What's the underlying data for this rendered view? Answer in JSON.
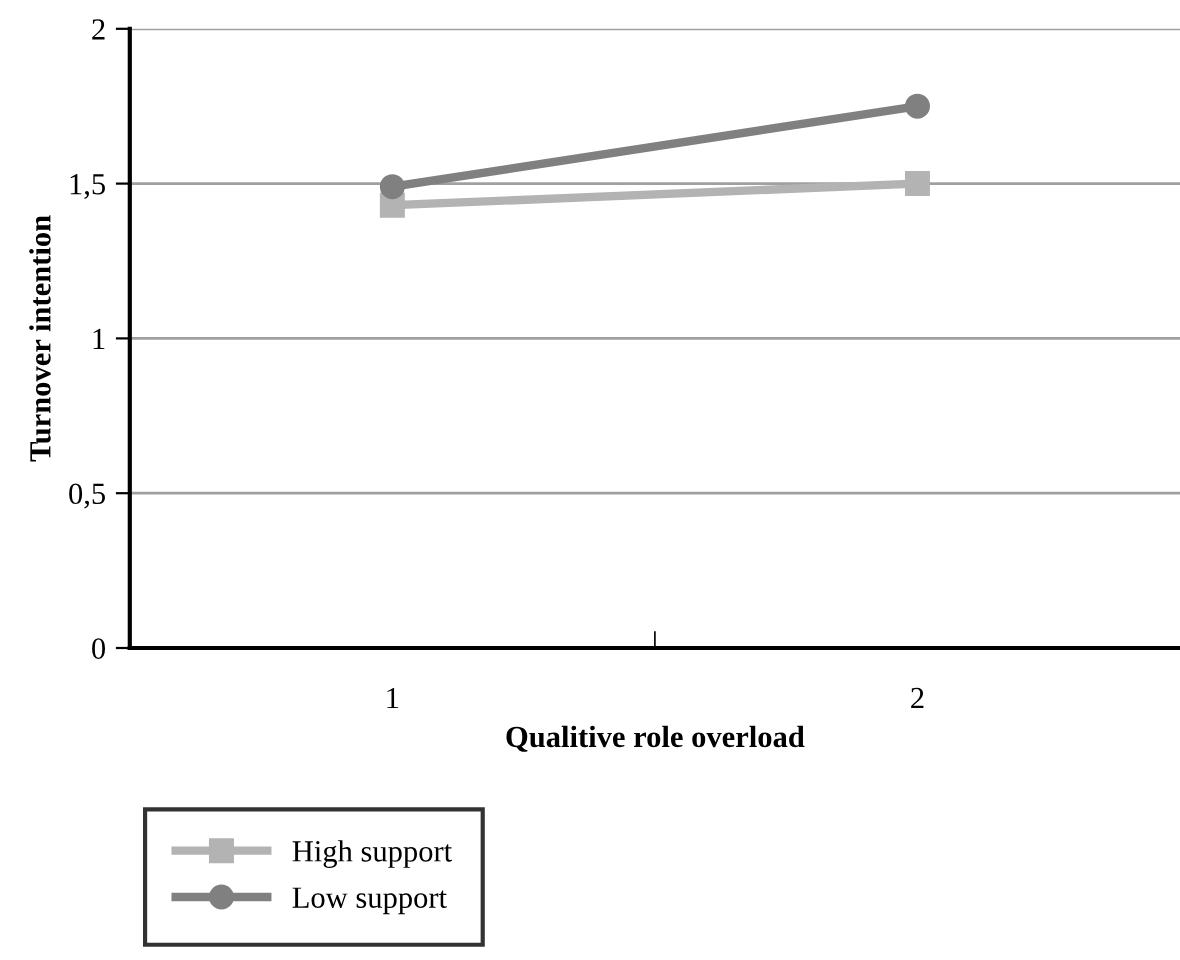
{
  "chart_data": {
    "type": "line",
    "xlabel": "Qualitive role overload",
    "ylabel": "Turnover intention",
    "categories": [
      "1",
      "2"
    ],
    "series": [
      {
        "name": "High support",
        "color": "#b3b3b3",
        "values": [
          1.43,
          1.5
        ],
        "marker": "square"
      },
      {
        "name": "Low support",
        "color": "#808080",
        "values": [
          1.49,
          1.75
        ],
        "marker": "circle"
      }
    ],
    "ylim": [
      0,
      2
    ],
    "yticks": [
      0,
      {
        "value": 0.5,
        "label": "0,5"
      },
      1,
      {
        "value": 1.5,
        "label": "1,5"
      },
      2
    ],
    "grid": "y",
    "legend": "bottom left",
    "line_style": "solid"
  }
}
